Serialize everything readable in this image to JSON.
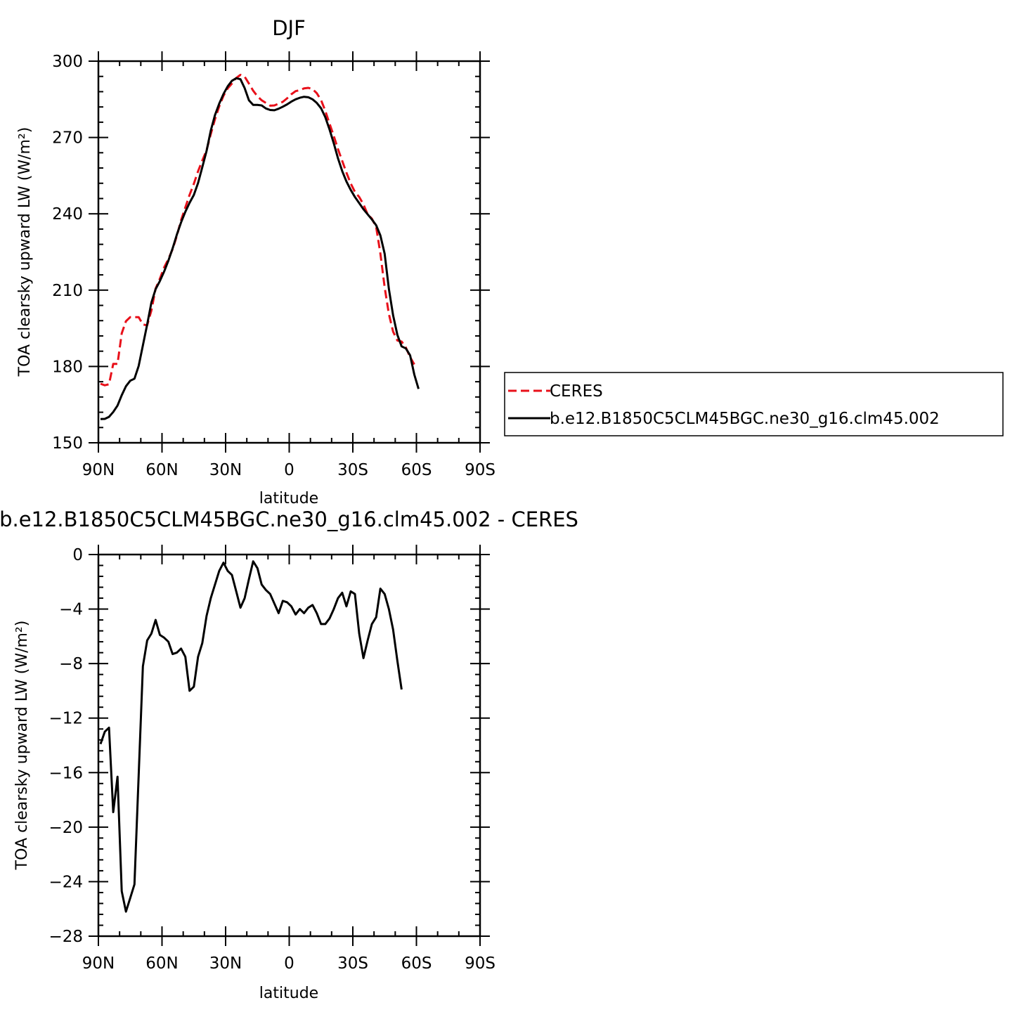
{
  "chart_data": [
    {
      "type": "line",
      "title": "DJF",
      "xlabel": "latitude",
      "ylabel": "TOA clearsky upward LW (W/m²)",
      "xlim": [
        -90,
        90
      ],
      "ylim": [
        150,
        300
      ],
      "xticks": [
        -90,
        -60,
        -30,
        0,
        30,
        60,
        90
      ],
      "xtick_labels": [
        "90N",
        "60N",
        "30N",
        "0",
        "30S",
        "60S",
        "90S"
      ],
      "yticks": [
        150,
        180,
        210,
        240,
        270,
        300
      ],
      "ytick_labels": [
        "150",
        "180",
        "210",
        "240",
        "270",
        "300"
      ],
      "legend_position": "right",
      "series": [
        {
          "name": "CERES",
          "color": "#e8101a",
          "dash": "dashed",
          "points": [
            [
              -89,
              173.2
            ],
            [
              -87,
              172.6
            ],
            [
              -85,
              173
            ],
            [
              -83,
              181
            ],
            [
              -81,
              181
            ],
            [
              -79,
              193
            ],
            [
              -77,
              197.8
            ],
            [
              -75,
              199.4
            ],
            [
              -73,
              199.4
            ],
            [
              -71,
              199.4
            ],
            [
              -69,
              196.5
            ],
            [
              -67,
              196.2
            ],
            [
              -65,
              202
            ],
            [
              -63,
              210.6
            ],
            [
              -61,
              214.5
            ],
            [
              -59,
              218.9
            ],
            [
              -57,
              222.2
            ],
            [
              -55,
              226.1
            ],
            [
              -53,
              231.3
            ],
            [
              -51,
              237.5
            ],
            [
              -49,
              242.5
            ],
            [
              -47,
              247.4
            ],
            [
              -45,
              251.8
            ],
            [
              -43,
              256.7
            ],
            [
              -41,
              260.9
            ],
            [
              -39,
              265
            ],
            [
              -37,
              271.3
            ],
            [
              -35,
              277.2
            ],
            [
              -33,
              282.2
            ],
            [
              -31,
              286.4
            ],
            [
              -29,
              289.3
            ],
            [
              -27,
              291.2
            ],
            [
              -25,
              293.4
            ],
            [
              -23,
              294.6
            ],
            [
              -21,
              293.9
            ],
            [
              -19,
              291.2
            ],
            [
              -17,
              288.4
            ],
            [
              -15,
              286.2
            ],
            [
              -13,
              284.6
            ],
            [
              -11,
              283.6
            ],
            [
              -9,
              282.5
            ],
            [
              -7,
              282.6
            ],
            [
              -5,
              283.3
            ],
            [
              -3,
              284
            ],
            [
              -1,
              285.4
            ],
            [
              1,
              287
            ],
            [
              3,
              288.2
            ],
            [
              5,
              288.6
            ],
            [
              7,
              289.3
            ],
            [
              9,
              289.5
            ],
            [
              11,
              289
            ],
            [
              13,
              287.4
            ],
            [
              15,
              284.7
            ],
            [
              17,
              280.5
            ],
            [
              19,
              275.5
            ],
            [
              21,
              270.6
            ],
            [
              23,
              265.4
            ],
            [
              25,
              260.8
            ],
            [
              27,
              256.2
            ],
            [
              29,
              251.9
            ],
            [
              31,
              248.6
            ],
            [
              33,
              246.6
            ],
            [
              35,
              243.7
            ],
            [
              37,
              239.8
            ],
            [
              39,
              238.1
            ],
            [
              41,
              234.8
            ],
            [
              43,
              224.4
            ],
            [
              45,
              211.1
            ],
            [
              47,
              200.6
            ],
            [
              49,
              193.7
            ],
            [
              51,
              190.2
            ],
            [
              53,
              189.8
            ],
            [
              55,
              187.5
            ],
            [
              57,
              183.7
            ],
            [
              59,
              180.8
            ]
          ]
        },
        {
          "name": "b.e12.B1850C5CLM45BGC.ne30_g16.clm45.002",
          "color": "#000000",
          "dash": "solid",
          "points": [
            [
              -89,
              159.3
            ],
            [
              -87,
              159.4
            ],
            [
              -85,
              160.2
            ],
            [
              -83,
              162.1
            ],
            [
              -81,
              164.6
            ],
            [
              -79,
              168.7
            ],
            [
              -77,
              172.2
            ],
            [
              -75,
              174.4
            ],
            [
              -73,
              175.2
            ],
            [
              -71,
              180.2
            ],
            [
              -69,
              188.3
            ],
            [
              -67,
              196.5
            ],
            [
              -65,
              205.1
            ],
            [
              -63,
              210.4
            ],
            [
              -61,
              213.6
            ],
            [
              -59,
              217.3
            ],
            [
              -57,
              221.6
            ],
            [
              -55,
              226.4
            ],
            [
              -53,
              231.8
            ],
            [
              -51,
              236.6
            ],
            [
              -49,
              240.8
            ],
            [
              -47,
              244.3
            ],
            [
              -45,
              247.4
            ],
            [
              -43,
              252.1
            ],
            [
              -41,
              258.3
            ],
            [
              -39,
              264.7
            ],
            [
              -37,
              272.7
            ],
            [
              -35,
              278.8
            ],
            [
              -33,
              283.3
            ],
            [
              -31,
              287.1
            ],
            [
              -29,
              290.1
            ],
            [
              -27,
              292.3
            ],
            [
              -25,
              293.3
            ],
            [
              -23,
              292.9
            ],
            [
              -21,
              289.4
            ],
            [
              -19,
              284.6
            ],
            [
              -17,
              282.8
            ],
            [
              -15,
              282.8
            ],
            [
              -13,
              282.6
            ],
            [
              -11,
              281.4
            ],
            [
              -9,
              280.8
            ],
            [
              -7,
              280.7
            ],
            [
              -5,
              281.3
            ],
            [
              -3,
              282.1
            ],
            [
              -1,
              283
            ],
            [
              1,
              284.1
            ],
            [
              3,
              285
            ],
            [
              5,
              285.6
            ],
            [
              7,
              286
            ],
            [
              9,
              285.8
            ],
            [
              11,
              285
            ],
            [
              13,
              283.6
            ],
            [
              15,
              281.5
            ],
            [
              17,
              278
            ],
            [
              19,
              273.2
            ],
            [
              21,
              267.7
            ],
            [
              23,
              261.8
            ],
            [
              25,
              256.8
            ],
            [
              27,
              252.7
            ],
            [
              29,
              249.4
            ],
            [
              31,
              246.6
            ],
            [
              33,
              244.2
            ],
            [
              35,
              241.8
            ],
            [
              37,
              239.8
            ],
            [
              39,
              237.8
            ],
            [
              41,
              235.5
            ],
            [
              43,
              231.5
            ],
            [
              45,
              224.3
            ],
            [
              47,
              210.5
            ],
            [
              49,
              200.1
            ],
            [
              51,
              192.4
            ],
            [
              53,
              187.9
            ],
            [
              55,
              187.1
            ],
            [
              57,
              184.4
            ],
            [
              59,
              176.8
            ],
            [
              61,
              171.2
            ]
          ]
        }
      ]
    },
    {
      "type": "line",
      "title": "b.e12.B1850C5CLM45BGC.ne30_g16.clm45.002 - CERES",
      "xlabel": "latitude",
      "ylabel": "TOA clearsky upward LW (W/m²)",
      "xlim": [
        -90,
        90
      ],
      "ylim": [
        -28,
        0
      ],
      "xticks": [
        -90,
        -60,
        -30,
        0,
        30,
        60,
        90
      ],
      "xtick_labels": [
        "90N",
        "60N",
        "30N",
        "0",
        "30S",
        "60S",
        "90S"
      ],
      "yticks": [
        -28,
        -24,
        -20,
        -16,
        -12,
        -8,
        -4,
        0
      ],
      "ytick_labels": [
        "−28",
        "−24",
        "−20",
        "−16",
        "−12",
        "−8",
        "−4",
        "0"
      ],
      "series": [
        {
          "color": "#000000",
          "dash": "solid",
          "points": [
            [
              -89,
              -13.9
            ],
            [
              -87,
              -13
            ],
            [
              -85,
              -12.7
            ],
            [
              -83,
              -18.9
            ],
            [
              -81,
              -16.3
            ],
            [
              -79,
              -24.7
            ],
            [
              -77,
              -26.2
            ],
            [
              -75,
              -25.2
            ],
            [
              -73,
              -24.2
            ],
            [
              -71,
              -16.2
            ],
            [
              -69,
              -8.2
            ],
            [
              -67,
              -6.3
            ],
            [
              -65,
              -5.8
            ],
            [
              -63,
              -4.8
            ],
            [
              -61,
              -5.9
            ],
            [
              -59,
              -6.1
            ],
            [
              -57,
              -6.4
            ],
            [
              -55,
              -7.3
            ],
            [
              -53,
              -7.2
            ],
            [
              -51,
              -6.9
            ],
            [
              -49,
              -7.5
            ],
            [
              -47,
              -10
            ],
            [
              -45,
              -9.7
            ],
            [
              -43,
              -7.5
            ],
            [
              -41,
              -6.5
            ],
            [
              -39,
              -4.5
            ],
            [
              -37,
              -3.2
            ],
            [
              -35,
              -2.2
            ],
            [
              -33,
              -1.2
            ],
            [
              -31,
              -0.6
            ],
            [
              -29,
              -1.2
            ],
            [
              -27,
              -1.5
            ],
            [
              -25,
              -2.7
            ],
            [
              -23,
              -3.9
            ],
            [
              -21,
              -3.2
            ],
            [
              -19,
              -1.8
            ],
            [
              -17,
              -0.5
            ],
            [
              -15,
              -1
            ],
            [
              -13,
              -2.2
            ],
            [
              -11,
              -2.6
            ],
            [
              -9,
              -2.9
            ],
            [
              -7,
              -3.6
            ],
            [
              -5,
              -4.3
            ],
            [
              -3,
              -3.4
            ],
            [
              -1,
              -3.5
            ],
            [
              1,
              -3.8
            ],
            [
              3,
              -4.4
            ],
            [
              5,
              -4
            ],
            [
              7,
              -4.3
            ],
            [
              9,
              -3.9
            ],
            [
              11,
              -3.7
            ],
            [
              13,
              -4.3
            ],
            [
              15,
              -5.1
            ],
            [
              17,
              -5.1
            ],
            [
              19,
              -4.7
            ],
            [
              21,
              -4
            ],
            [
              23,
              -3.2
            ],
            [
              25,
              -2.8
            ],
            [
              27,
              -3.8
            ],
            [
              29,
              -2.7
            ],
            [
              31,
              -2.9
            ],
            [
              33,
              -5.8
            ],
            [
              35,
              -7.6
            ],
            [
              37,
              -6.3
            ],
            [
              39,
              -5.1
            ],
            [
              41,
              -4.6
            ],
            [
              43,
              -2.5
            ],
            [
              45,
              -2.9
            ],
            [
              47,
              -4
            ],
            [
              49,
              -5.5
            ],
            [
              51,
              -7.8
            ],
            [
              53,
              -9.9
            ]
          ]
        }
      ]
    }
  ]
}
